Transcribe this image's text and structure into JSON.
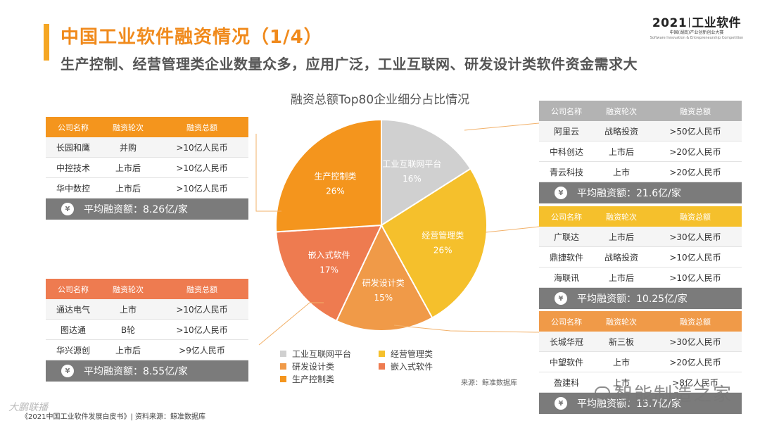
{
  "header": {
    "title": "中国工业软件融资情况（1/4）",
    "subtitle": "生产控制、经营管理类企业数量众多，应用广泛，工业互联网、研发设计类软件资金需求大"
  },
  "brand": {
    "main_year": "2021",
    "main_name": "工业软件",
    "sub1": "中国(湖南)产业创新创业大赛",
    "sub2": "Software Innovation & Entrepreneurship Competition"
  },
  "chart_data": {
    "type": "pie",
    "title": "融资总额Top80企业细分占比情况",
    "slices": [
      {
        "label": "工业互联网平台",
        "value": 16,
        "display": "16%",
        "color": "#d0d0d0"
      },
      {
        "label": "经营管理类",
        "value": 26,
        "display": "26%",
        "color": "#f5c02c"
      },
      {
        "label": "研发设计类",
        "value": 15,
        "display": "15%",
        "color": "#f09a48"
      },
      {
        "label": "嵌入式软件",
        "value": 17,
        "display": "17%",
        "color": "#ee7b50"
      },
      {
        "label": "生产控制类",
        "value": 26,
        "display": "26%",
        "color": "#f4951d"
      }
    ],
    "legend": [
      "工业互联网平台",
      "经营管理类",
      "研发设计类",
      "嵌入式软件",
      "生产控制类"
    ]
  },
  "tables": {
    "headers": [
      "公司名称",
      "融资轮次",
      "融资总额"
    ],
    "avg_prefix": "平均融资额：",
    "production": {
      "color": "#f4951d",
      "rows": [
        [
          "长园和鹰",
          "并购",
          ">10亿人民币"
        ],
        [
          "中控技术",
          "上市后",
          ">10亿人民币"
        ],
        [
          "华中数控",
          "上市后",
          ">10亿人民币"
        ]
      ],
      "avg": "8.26亿/家"
    },
    "embedded": {
      "color": "#ee7b50",
      "rows": [
        [
          "通达电气",
          "上市",
          ">10亿人民币"
        ],
        [
          "图达通",
          "B轮",
          ">10亿人民币"
        ],
        [
          "华兴源创",
          "上市后",
          ">9亿人民币"
        ]
      ],
      "avg": "8.55亿/家"
    },
    "internet": {
      "color": "#b3b3b3",
      "rows": [
        [
          "阿里云",
          "战略投资",
          ">50亿人民币"
        ],
        [
          "中科创达",
          "上市后",
          ">20亿人民币"
        ],
        [
          "青云科技",
          "上市",
          ">20亿人民币"
        ]
      ],
      "avg": "21.6亿/家"
    },
    "management": {
      "color": "#f5c02c",
      "rows": [
        [
          "广联达",
          "上市后",
          ">30亿人民币"
        ],
        [
          "鼎捷软件",
          "战略投资",
          ">10亿人民币"
        ],
        [
          "海联讯",
          "上市后",
          ">10亿人民币"
        ]
      ],
      "avg": "10.25亿/家"
    },
    "rnd": {
      "color": "#f09a48",
      "rows": [
        [
          "长城华冠",
          "新三板",
          ">30亿人民币"
        ],
        [
          "中望软件",
          "上市",
          ">20亿人民币"
        ],
        [
          "盈建科",
          "上市",
          ">8亿人民币"
        ]
      ],
      "avg": "13.7亿/家"
    }
  },
  "source": "来源：鲸准数据库",
  "footer": "《2021中国工业软件发展白皮书》| 资料来源：鲸准数据库",
  "watermark_left": "大鹏联播",
  "watermark_right": "智能制造之家"
}
